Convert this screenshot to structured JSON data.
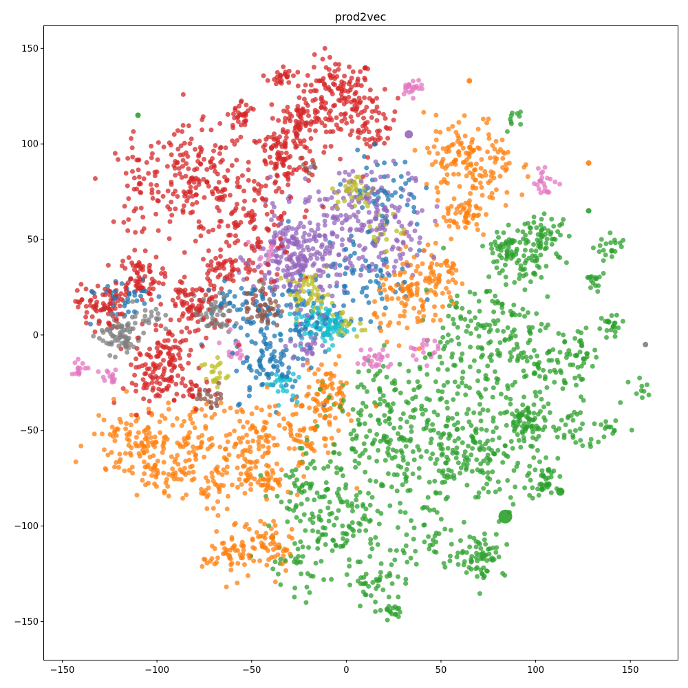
{
  "chart_data": {
    "type": "scatter",
    "title": "prod2vec",
    "xlabel": "",
    "ylabel": "",
    "xlim": [
      -160,
      175
    ],
    "ylim": [
      -170,
      162
    ],
    "xticks": [
      -150,
      -100,
      -50,
      0,
      50,
      100,
      150
    ],
    "yticks": [
      -150,
      -100,
      -50,
      0,
      50,
      100,
      150
    ],
    "grid": false,
    "legend": "none",
    "marker_opacity": 0.75,
    "palette": {
      "blue": "#1f77b4",
      "orange": "#ff7f0e",
      "green": "#2ca02c",
      "red": "#d62728",
      "purple": "#9467bd",
      "brown": "#8c564b",
      "pink": "#e377c2",
      "gray": "#7f7f7f",
      "olive": "#bcbd22",
      "cyan": "#17becf"
    },
    "clusters": [
      {
        "color": "red",
        "cx": -5,
        "cy": 125,
        "sx": 10,
        "sy": 10,
        "n": 140
      },
      {
        "color": "red",
        "cx": -25,
        "cy": 110,
        "sx": 8,
        "sy": 9,
        "n": 90
      },
      {
        "color": "red",
        "cx": 15,
        "cy": 110,
        "sx": 6,
        "sy": 8,
        "n": 50
      },
      {
        "color": "red",
        "cx": -80,
        "cy": 80,
        "sx": 14,
        "sy": 14,
        "n": 170
      },
      {
        "color": "red",
        "cx": -50,
        "cy": 55,
        "sx": 12,
        "sy": 15,
        "n": 120
      },
      {
        "color": "red",
        "cx": -35,
        "cy": 90,
        "sx": 8,
        "sy": 10,
        "n": 80
      },
      {
        "color": "red",
        "cx": -55,
        "cy": 115,
        "sx": 4,
        "sy": 4,
        "n": 30
      },
      {
        "color": "red",
        "cx": -35,
        "cy": 135,
        "sx": 3,
        "sy": 3,
        "n": 22
      },
      {
        "color": "red",
        "cx": -110,
        "cy": 30,
        "sx": 6,
        "sy": 6,
        "n": 70
      },
      {
        "color": "red",
        "cx": -130,
        "cy": 15,
        "sx": 6,
        "sy": 6,
        "n": 70
      },
      {
        "color": "red",
        "cx": -80,
        "cy": 15,
        "sx": 8,
        "sy": 8,
        "n": 90
      },
      {
        "color": "red",
        "cx": -95,
        "cy": -10,
        "sx": 8,
        "sy": 7,
        "n": 80
      },
      {
        "color": "red",
        "cx": -100,
        "cy": -25,
        "sx": 8,
        "sy": 6,
        "n": 60
      },
      {
        "color": "red",
        "cx": -110,
        "cy": 80,
        "sx": 6,
        "sy": 12,
        "n": 45
      },
      {
        "color": "red",
        "cx": -65,
        "cy": 35,
        "sx": 6,
        "sy": 4,
        "n": 30
      },
      {
        "color": "red",
        "cx": -80,
        "cy": -30,
        "sx": 4,
        "sy": 4,
        "n": 20
      },
      {
        "color": "purple",
        "cx": -25,
        "cy": 40,
        "sx": 12,
        "sy": 12,
        "n": 240
      },
      {
        "color": "purple",
        "cx": 5,
        "cy": 70,
        "sx": 15,
        "sy": 10,
        "n": 120
      },
      {
        "color": "purple",
        "cx": 20,
        "cy": 45,
        "sx": 10,
        "sy": 10,
        "n": 70
      },
      {
        "color": "purple",
        "cx": -20,
        "cy": -5,
        "sx": 5,
        "sy": 5,
        "n": 25
      },
      {
        "color": "blue",
        "cx": -30,
        "cy": 10,
        "sx": 14,
        "sy": 10,
        "n": 90
      },
      {
        "color": "blue",
        "cx": -40,
        "cy": -15,
        "sx": 10,
        "sy": 10,
        "n": 80
      },
      {
        "color": "blue",
        "cx": 10,
        "cy": 30,
        "sx": 12,
        "sy": 14,
        "n": 70
      },
      {
        "color": "blue",
        "cx": 20,
        "cy": 75,
        "sx": 10,
        "sy": 10,
        "n": 50
      },
      {
        "color": "blue",
        "cx": -120,
        "cy": 20,
        "sx": 10,
        "sy": 6,
        "n": 40
      },
      {
        "color": "blue",
        "cx": -60,
        "cy": 20,
        "sx": 6,
        "sy": 5,
        "n": 20
      },
      {
        "color": "olive",
        "cx": -20,
        "cy": 22,
        "sx": 6,
        "sy": 5,
        "n": 50
      },
      {
        "color": "olive",
        "cx": 5,
        "cy": 75,
        "sx": 5,
        "sy": 5,
        "n": 30
      },
      {
        "color": "olive",
        "cx": -70,
        "cy": -20,
        "sx": 4,
        "sy": 4,
        "n": 20
      },
      {
        "color": "olive",
        "cx": 0,
        "cy": 5,
        "sx": 4,
        "sy": 4,
        "n": 15
      },
      {
        "color": "olive",
        "cx": 20,
        "cy": 55,
        "sx": 5,
        "sy": 5,
        "n": 15
      },
      {
        "color": "cyan",
        "cx": -10,
        "cy": 5,
        "sx": 5,
        "sy": 5,
        "n": 70
      },
      {
        "color": "cyan",
        "cx": -35,
        "cy": -25,
        "sx": 4,
        "sy": 4,
        "n": 25
      },
      {
        "color": "cyan",
        "cx": -25,
        "cy": 5,
        "sx": 5,
        "sy": 5,
        "n": 20
      },
      {
        "color": "gray",
        "cx": -120,
        "cy": 0,
        "sx": 6,
        "sy": 5,
        "n": 70
      },
      {
        "color": "gray",
        "cx": -70,
        "cy": 10,
        "sx": 5,
        "sy": 5,
        "n": 50
      },
      {
        "color": "gray",
        "cx": -105,
        "cy": 10,
        "sx": 4,
        "sy": 4,
        "n": 20
      },
      {
        "color": "brown",
        "cx": -45,
        "cy": 15,
        "sx": 5,
        "sy": 6,
        "n": 50
      },
      {
        "color": "brown",
        "cx": -70,
        "cy": -32,
        "sx": 4,
        "sy": 3,
        "n": 20
      },
      {
        "color": "brown",
        "cx": -20,
        "cy": 88,
        "sx": 3,
        "sy": 3,
        "n": 8
      },
      {
        "color": "pink",
        "cx": 35,
        "cy": 130,
        "sx": 3,
        "sy": 2,
        "n": 22
      },
      {
        "color": "pink",
        "cx": 105,
        "cy": 80,
        "sx": 3,
        "sy": 4,
        "n": 22
      },
      {
        "color": "pink",
        "cx": -140,
        "cy": -17,
        "sx": 3,
        "sy": 2,
        "n": 14
      },
      {
        "color": "pink",
        "cx": -125,
        "cy": -22,
        "sx": 3,
        "sy": 2,
        "n": 14
      },
      {
        "color": "pink",
        "cx": 15,
        "cy": -13,
        "sx": 5,
        "sy": 4,
        "n": 25
      },
      {
        "color": "pink",
        "cx": 40,
        "cy": -7,
        "sx": 4,
        "sy": 3,
        "n": 18
      },
      {
        "color": "pink",
        "cx": -60,
        "cy": -7,
        "sx": 3,
        "sy": 4,
        "n": 15
      },
      {
        "color": "pink",
        "cx": -40,
        "cy": 45,
        "sx": 4,
        "sy": 4,
        "n": 15
      },
      {
        "color": "orange",
        "cx": 65,
        "cy": 90,
        "sx": 12,
        "sy": 12,
        "n": 150
      },
      {
        "color": "orange",
        "cx": 62,
        "cy": 62,
        "sx": 5,
        "sy": 5,
        "n": 45
      },
      {
        "color": "orange",
        "cx": 35,
        "cy": 20,
        "sx": 10,
        "sy": 10,
        "n": 100
      },
      {
        "color": "orange",
        "cx": 50,
        "cy": 30,
        "sx": 7,
        "sy": 7,
        "n": 40
      },
      {
        "color": "orange",
        "cx": -110,
        "cy": -55,
        "sx": 12,
        "sy": 10,
        "n": 120
      },
      {
        "color": "orange",
        "cx": -80,
        "cy": -55,
        "sx": 8,
        "sy": 8,
        "n": 60
      },
      {
        "color": "orange",
        "cx": -50,
        "cy": -55,
        "sx": 10,
        "sy": 10,
        "n": 80
      },
      {
        "color": "orange",
        "cx": -20,
        "cy": -50,
        "sx": 10,
        "sy": 10,
        "n": 70
      },
      {
        "color": "orange",
        "cx": -10,
        "cy": -30,
        "sx": 6,
        "sy": 8,
        "n": 60
      },
      {
        "color": "orange",
        "cx": -45,
        "cy": -75,
        "sx": 8,
        "sy": 6,
        "n": 60
      },
      {
        "color": "orange",
        "cx": -60,
        "cy": -115,
        "sx": 8,
        "sy": 6,
        "n": 60
      },
      {
        "color": "orange",
        "cx": -40,
        "cy": -110,
        "sx": 6,
        "sy": 8,
        "n": 50
      },
      {
        "color": "orange",
        "cx": -95,
        "cy": -75,
        "sx": 8,
        "sy": 5,
        "n": 40
      },
      {
        "color": "orange",
        "cx": -70,
        "cy": -80,
        "sx": 4,
        "sy": 6,
        "n": 25
      },
      {
        "color": "green",
        "cx": 30,
        "cy": -50,
        "sx": 20,
        "sy": 18,
        "n": 250
      },
      {
        "color": "green",
        "cx": 70,
        "cy": -60,
        "sx": 15,
        "sy": 15,
        "n": 160
      },
      {
        "color": "green",
        "cx": 70,
        "cy": 0,
        "sx": 15,
        "sy": 15,
        "n": 140
      },
      {
        "color": "green",
        "cx": 100,
        "cy": -20,
        "sx": 12,
        "sy": 12,
        "n": 90
      },
      {
        "color": "green",
        "cx": 85,
        "cy": 45,
        "sx": 6,
        "sy": 6,
        "n": 60
      },
      {
        "color": "green",
        "cx": 105,
        "cy": 50,
        "sx": 6,
        "sy": 6,
        "n": 60
      },
      {
        "color": "green",
        "cx": 95,
        "cy": -45,
        "sx": 6,
        "sy": 5,
        "n": 60
      },
      {
        "color": "green",
        "cx": 70,
        "cy": -115,
        "sx": 7,
        "sy": 6,
        "n": 70
      },
      {
        "color": "green",
        "cx": 105,
        "cy": -75,
        "sx": 5,
        "sy": 6,
        "n": 40
      },
      {
        "color": "green",
        "cx": 125,
        "cy": -10,
        "sx": 5,
        "sy": 5,
        "n": 30
      },
      {
        "color": "green",
        "cx": 120,
        "cy": -50,
        "sx": 6,
        "sy": 6,
        "n": 30
      },
      {
        "color": "green",
        "cx": 140,
        "cy": 5,
        "sx": 4,
        "sy": 4,
        "n": 20
      },
      {
        "color": "green",
        "cx": 140,
        "cy": 45,
        "sx": 4,
        "sy": 4,
        "n": 20
      },
      {
        "color": "green",
        "cx": 0,
        "cy": -100,
        "sx": 10,
        "sy": 10,
        "n": 80
      },
      {
        "color": "green",
        "cx": 15,
        "cy": -130,
        "sx": 8,
        "sy": 6,
        "n": 40
      },
      {
        "color": "green",
        "cx": -20,
        "cy": -80,
        "sx": 10,
        "sy": 10,
        "n": 70
      },
      {
        "color": "green",
        "cx": -25,
        "cy": -120,
        "sx": 10,
        "sy": 10,
        "n": 40
      },
      {
        "color": "green",
        "cx": 40,
        "cy": -110,
        "sx": 10,
        "sy": 10,
        "n": 40
      },
      {
        "color": "green",
        "cx": 25,
        "cy": -145,
        "sx": 3,
        "sy": 3,
        "n": 15
      },
      {
        "color": "green",
        "cx": 95,
        "cy": 35,
        "sx": 5,
        "sy": 5,
        "n": 25
      },
      {
        "color": "green",
        "cx": 130,
        "cy": 28,
        "sx": 3,
        "sy": 3,
        "n": 15
      },
      {
        "color": "green",
        "cx": 140,
        "cy": -50,
        "sx": 3,
        "sy": 3,
        "n": 12
      },
      {
        "color": "green",
        "cx": 90,
        "cy": 112,
        "sx": 3,
        "sy": 3,
        "n": 10
      },
      {
        "color": "green",
        "cx": 150,
        "cy": -30,
        "sx": 5,
        "sy": 5,
        "n": 10
      }
    ],
    "large_points": [
      {
        "x": 33,
        "y": 105,
        "color": "purple",
        "size": 6
      },
      {
        "x": 84,
        "y": -95,
        "color": "green",
        "size": 10
      },
      {
        "x": 113,
        "y": -82,
        "color": "green",
        "size": 6
      },
      {
        "x": -110,
        "y": 115,
        "color": "green",
        "size": 4
      },
      {
        "x": 65,
        "y": 133,
        "color": "orange",
        "size": 4
      },
      {
        "x": 128,
        "y": 90,
        "color": "orange",
        "size": 4
      },
      {
        "x": 128,
        "y": 65,
        "color": "green",
        "size": 4
      },
      {
        "x": 158,
        "y": -5,
        "color": "gray",
        "size": 4
      }
    ]
  }
}
